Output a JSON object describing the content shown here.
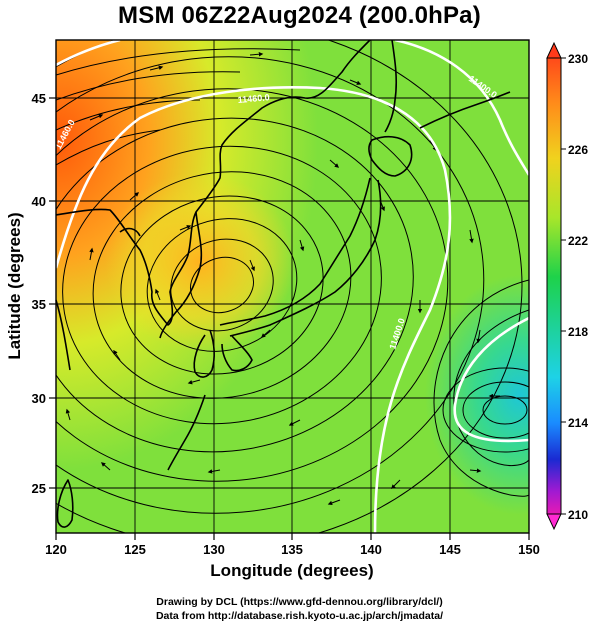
{
  "title": "MSM 06Z22Aug2024 (200.0hPa)",
  "xlabel": "Longitude (degrees)",
  "ylabel": "Latitude  (degrees)",
  "x_ticks": [
    "120",
    "125",
    "130",
    "135",
    "140",
    "145",
    "150"
  ],
  "y_ticks": [
    "25",
    "30",
    "35",
    "40",
    "45"
  ],
  "colorbar_ticks": [
    "230",
    "226",
    "222",
    "218",
    "214",
    "210"
  ],
  "contour_labels": [
    "11460.0",
    "11460.0",
    "11400.0",
    "11400.0"
  ],
  "footer_line1": "Drawing by DCL (https://www.gfd-dennou.org/library/dcl/)",
  "footer_line2": "Data from http://database.rish.kyoto-u.ac.jp/arch/jmadata/",
  "map_extent": {
    "lon": [
      120,
      150
    ],
    "lat": [
      22.5,
      47.5
    ]
  },
  "colorbar_range": [
    210,
    230
  ],
  "colors": {
    "warm": "#ff6a00",
    "mid": "#6ee04a",
    "cool": "#3ad0c8",
    "coast": "#000000",
    "contour": "#ffffff"
  }
}
